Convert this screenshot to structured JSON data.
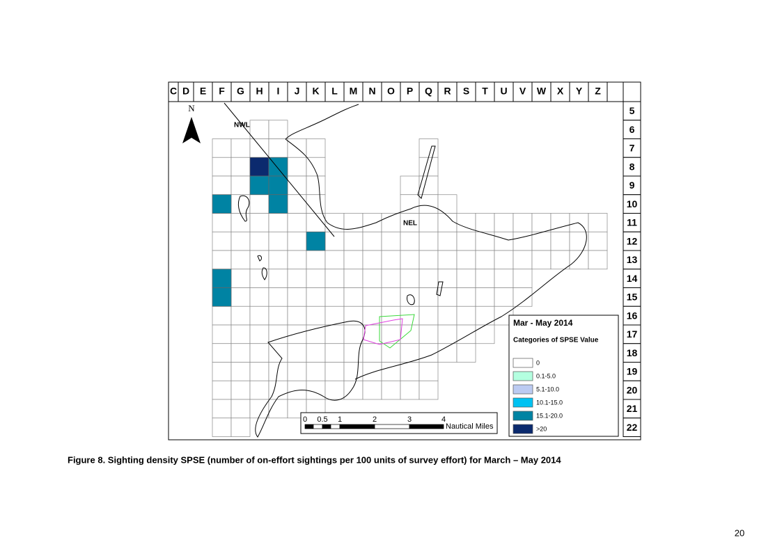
{
  "map": {
    "columns": [
      "C",
      "D",
      "E",
      "F",
      "G",
      "H",
      "I",
      "J",
      "K",
      "L",
      "M",
      "N",
      "O",
      "P",
      "Q",
      "R",
      "S",
      "T",
      "U",
      "V",
      "W",
      "X",
      "Y",
      "Z"
    ],
    "rows": [
      5,
      6,
      7,
      8,
      9,
      10,
      11,
      12,
      13,
      14,
      15,
      16,
      17,
      18,
      19,
      20,
      21,
      22
    ],
    "north": "N",
    "area_labels": [
      "NWL",
      "NEL"
    ],
    "shaded_cells": [
      {
        "column": "H",
        "row": 8,
        "category": ">20"
      },
      {
        "column": "I",
        "row": 8,
        "category": "15.1-20.0"
      },
      {
        "column": "H",
        "row": 9,
        "category": "15.1-20.0"
      },
      {
        "column": "I",
        "row": 9,
        "category": "15.1-20.0"
      },
      {
        "column": "F",
        "row": 10,
        "category": "15.1-20.0"
      },
      {
        "column": "I",
        "row": 10,
        "category": "15.1-20.0"
      },
      {
        "column": "K",
        "row": 12,
        "category": "15.1-20.0"
      },
      {
        "column": "F",
        "row": 14,
        "category": "15.1-20.0"
      },
      {
        "column": "F",
        "row": 15,
        "category": "15.1-20.0"
      }
    ],
    "legend": {
      "title": "Mar - May 2014",
      "subtitle": "Categories of SPSE Value",
      "items": [
        {
          "label": "0",
          "color": "#ffffff"
        },
        {
          "label": "0.1-5.0",
          "color": "#b4ffe0"
        },
        {
          "label": "5.1-10.0",
          "color": "#bccbf2"
        },
        {
          "label": "10.1-15.0",
          "color": "#00c2f2"
        },
        {
          "label": "15.1-20.0",
          "color": "#0083a3"
        },
        {
          "label": ">20",
          "color": "#0b2a6e"
        }
      ]
    },
    "scale_bar": {
      "labels": [
        "0",
        "0.5",
        "1",
        "2",
        "3",
        "4"
      ],
      "unit": "Nautical Miles"
    }
  },
  "caption": "Figure 8. Sighting density SPSE (number of on-effort sightings per 100 units of survey effort) for March – May 2014",
  "page_number": "20"
}
